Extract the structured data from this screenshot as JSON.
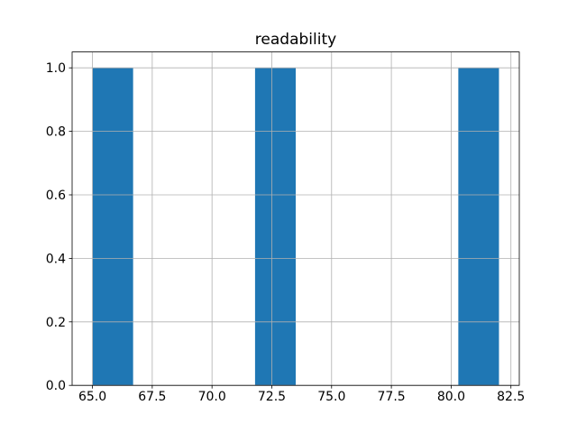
{
  "chart_data": {
    "type": "bar",
    "subtype": "histogram",
    "title": "readability",
    "bars": [
      {
        "x_start": 65.0,
        "x_end": 66.7,
        "value": 1.0
      },
      {
        "x_start": 71.8,
        "x_end": 73.5,
        "value": 1.0
      },
      {
        "x_start": 80.3,
        "x_end": 82.0,
        "value": 1.0
      }
    ],
    "xticks": [
      65.0,
      67.5,
      70.0,
      72.5,
      75.0,
      77.5,
      80.0,
      82.5
    ],
    "xtick_labels": [
      "65.0",
      "67.5",
      "70.0",
      "72.5",
      "75.0",
      "77.5",
      "80.0",
      "82.5"
    ],
    "yticks": [
      0.0,
      0.2,
      0.4,
      0.6,
      0.8,
      1.0
    ],
    "ytick_labels": [
      "0.0",
      "0.2",
      "0.4",
      "0.6",
      "0.8",
      "1.0"
    ],
    "xlim": [
      64.15,
      82.85
    ],
    "ylim": [
      0.0,
      1.05
    ],
    "xlabel": "",
    "ylabel": "",
    "grid": true,
    "legend": "none",
    "colors": {
      "bar": "#1f77b4",
      "grid": "#b0b0b0",
      "spine": "#000000",
      "text": "#000000",
      "background": "#ffffff"
    }
  }
}
